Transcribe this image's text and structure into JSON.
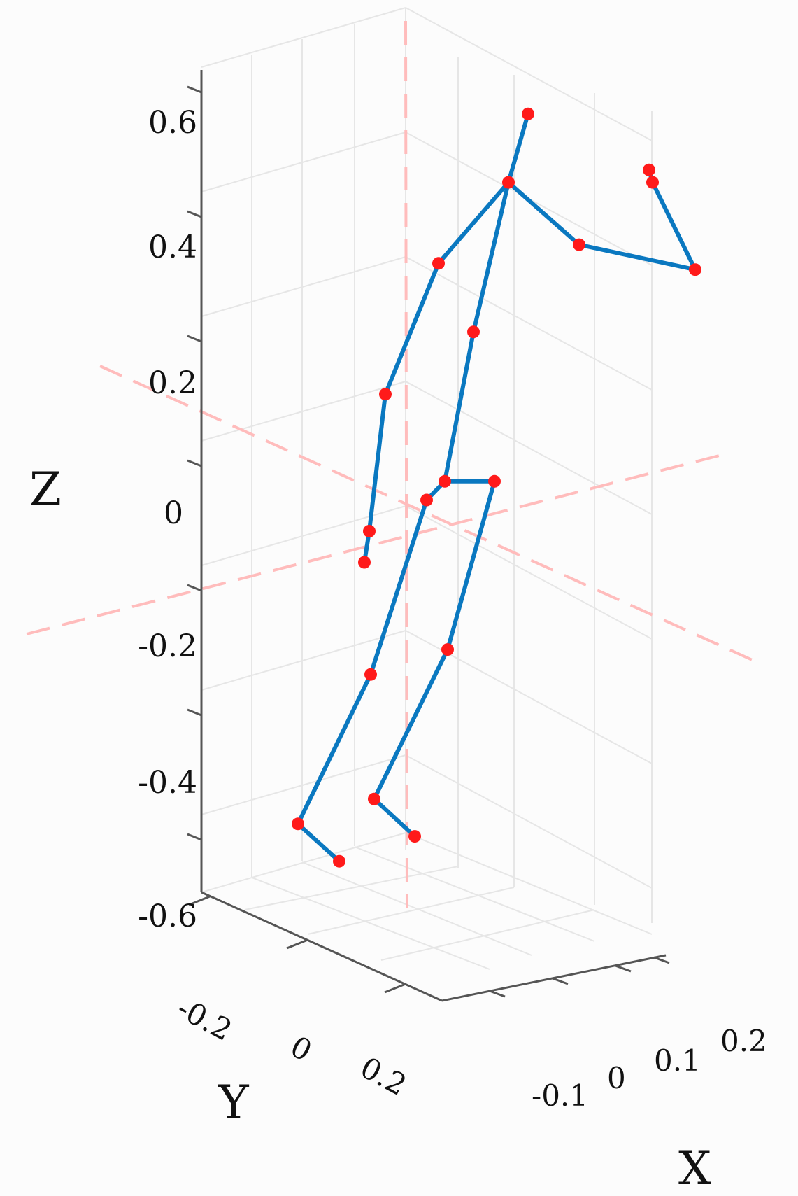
{
  "chart_data": {
    "type": "scatter",
    "subtype": "3d-skeleton",
    "axes": {
      "x": {
        "label": "X",
        "ticks": [
          "-0.1",
          "0",
          "0.1",
          "0.2"
        ],
        "range": [
          -0.15,
          0.25
        ]
      },
      "y": {
        "label": "Y",
        "ticks": [
          "-0.2",
          "0",
          "0.2"
        ],
        "range": [
          -0.3,
          0.3
        ]
      },
      "z": {
        "label": "Z",
        "ticks": [
          "0.6",
          "0.4",
          "0.2",
          "0",
          "-0.2",
          "-0.4",
          "-0.6"
        ],
        "range": [
          -0.68,
          0.62
        ]
      }
    },
    "grid": true,
    "joint_color": "#ff1a1a",
    "bone_color": "#0a78c0",
    "reference_axes_color": "#ffbcbc",
    "joints": [
      {
        "name": "head",
        "z": 0.57
      },
      {
        "name": "neck",
        "z": 0.46
      },
      {
        "name": "shoulder-left",
        "z": 0.33
      },
      {
        "name": "elbow-left",
        "z": 0.12
      },
      {
        "name": "wrist-left",
        "z": -0.1
      },
      {
        "name": "hand-left",
        "z": -0.15
      },
      {
        "name": "shoulder-right",
        "z": 0.36
      },
      {
        "name": "elbow-right",
        "z": 0.32
      },
      {
        "name": "wrist-right",
        "z": 0.46
      },
      {
        "name": "hand-right",
        "z": 0.48
      },
      {
        "name": "spine",
        "z": 0.22
      },
      {
        "name": "pelvis",
        "z": -0.02
      },
      {
        "name": "hip-left",
        "z": -0.05
      },
      {
        "name": "hip-right",
        "z": -0.02
      },
      {
        "name": "knee-left",
        "z": -0.33
      },
      {
        "name": "ankle-left",
        "z": -0.57
      },
      {
        "name": "foot-left",
        "z": -0.63
      },
      {
        "name": "knee-right",
        "z": -0.29
      },
      {
        "name": "ankle-right",
        "z": -0.53
      },
      {
        "name": "foot-right",
        "z": -0.59
      }
    ],
    "bones": [
      [
        "head",
        "neck"
      ],
      [
        "neck",
        "shoulder-left"
      ],
      [
        "shoulder-left",
        "elbow-left"
      ],
      [
        "elbow-left",
        "wrist-left"
      ],
      [
        "wrist-left",
        "hand-left"
      ],
      [
        "neck",
        "shoulder-right"
      ],
      [
        "shoulder-right",
        "elbow-right"
      ],
      [
        "elbow-right",
        "wrist-right"
      ],
      [
        "wrist-right",
        "hand-right"
      ],
      [
        "neck",
        "spine"
      ],
      [
        "spine",
        "pelvis"
      ],
      [
        "pelvis",
        "hip-left"
      ],
      [
        "pelvis",
        "hip-right"
      ],
      [
        "hip-left",
        "knee-left"
      ],
      [
        "knee-left",
        "ankle-left"
      ],
      [
        "ankle-left",
        "foot-left"
      ],
      [
        "hip-right",
        "knee-right"
      ],
      [
        "knee-right",
        "ankle-right"
      ],
      [
        "ankle-right",
        "foot-right"
      ]
    ]
  }
}
